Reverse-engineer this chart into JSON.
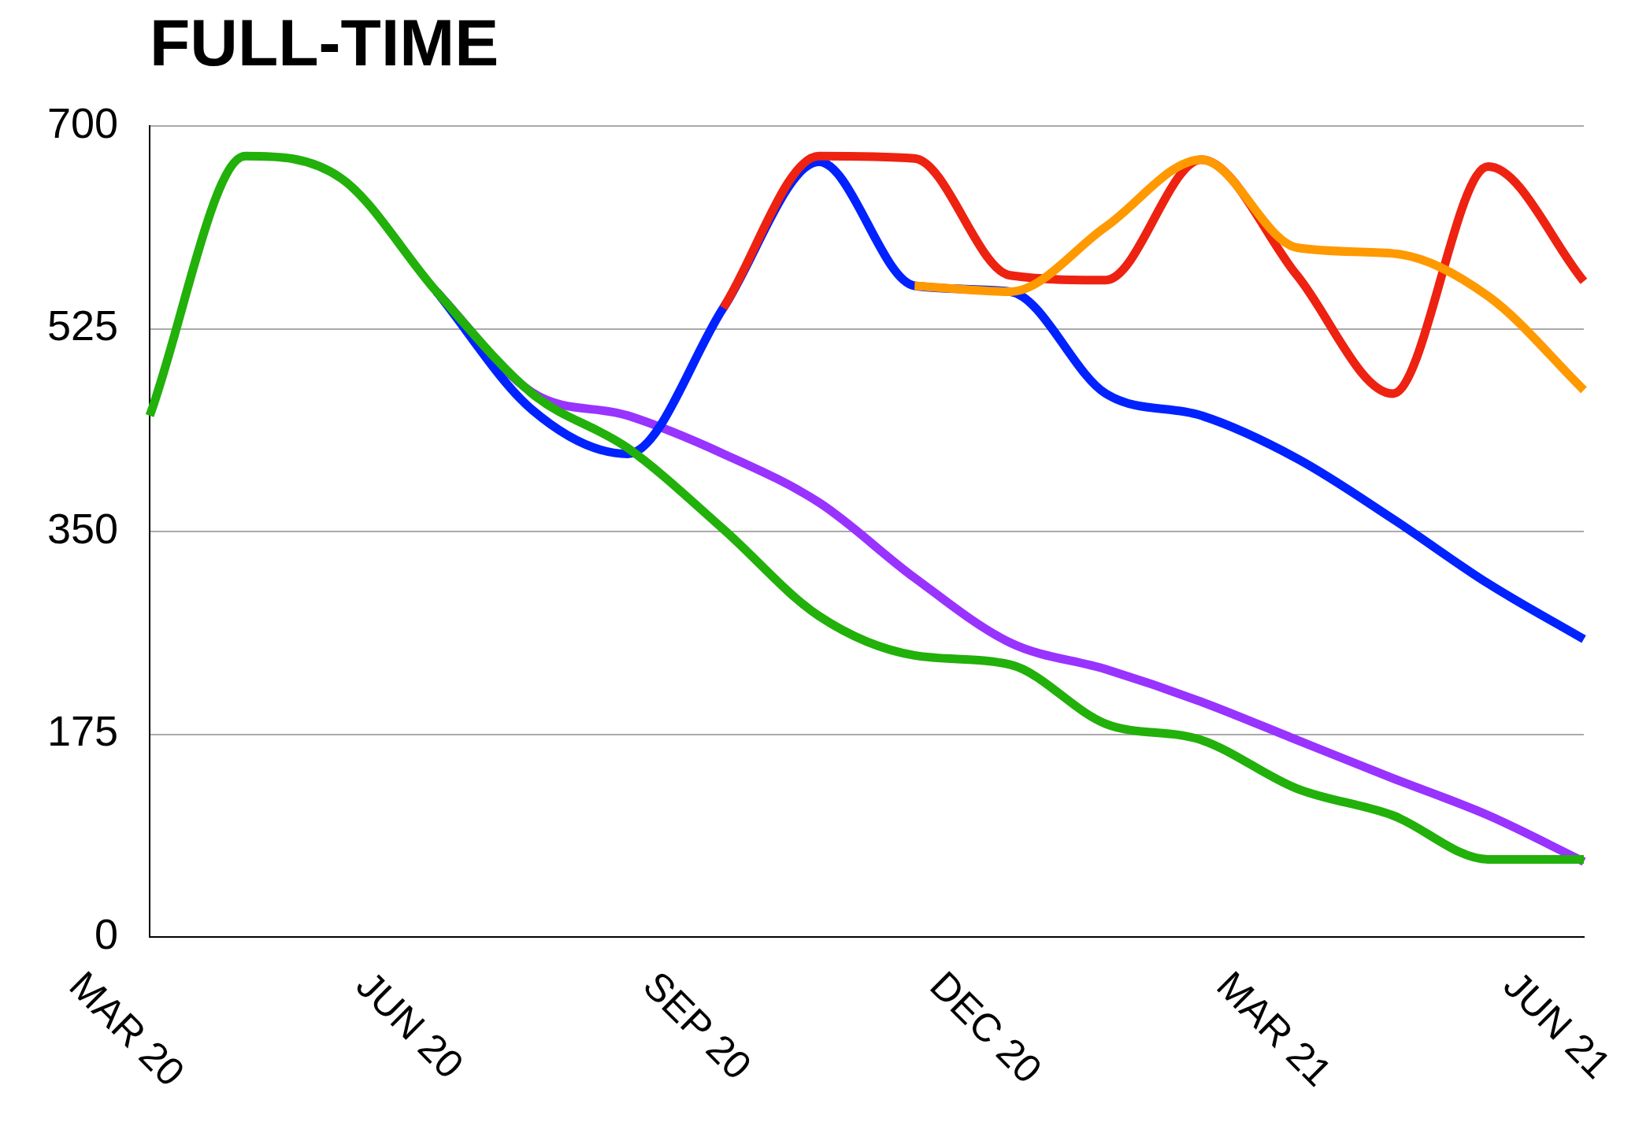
{
  "chart_data": {
    "type": "line",
    "title": "FULL-TIME",
    "categories": [
      "MAR 20",
      null,
      null,
      "JUN 20",
      null,
      null,
      "SEP 20",
      null,
      null,
      "DEC 20",
      null,
      null,
      "MAR 21",
      null,
      null,
      "JUN 21"
    ],
    "series": [
      {
        "color": "#9933ff",
        "values": [
          null,
          null,
          null,
          557,
          470,
          450,
          417,
          375,
          310,
          254,
          231,
          203,
          170,
          137,
          105,
          65
        ]
      },
      {
        "color": "#0022ff",
        "values": [
          null,
          null,
          null,
          557,
          455,
          417,
          543,
          669,
          562,
          557,
          469,
          450,
          413,
          361,
          305,
          257
        ]
      },
      {
        "color": "#ee2211",
        "values": [
          null,
          null,
          null,
          null,
          null,
          null,
          543,
          674,
          672,
          571,
          567,
          671,
          571,
          469,
          665,
          566
        ]
      },
      {
        "color": "#ff9900",
        "values": [
          null,
          null,
          null,
          null,
          null,
          null,
          null,
          null,
          562,
          557,
          613,
          671,
          595,
          590,
          553,
          472
        ]
      },
      {
        "color": "#22b00a",
        "values": [
          450,
          674,
          655,
          557,
          469,
          422,
          352,
          277,
          243,
          235,
          184,
          170,
          128,
          105,
          67,
          67
        ]
      }
    ],
    "ylim": [
      0,
      700
    ],
    "yticks": [
      0,
      175,
      350,
      525,
      700
    ],
    "grid": "y",
    "legend": false,
    "marker": "none",
    "line_style": "solid"
  }
}
